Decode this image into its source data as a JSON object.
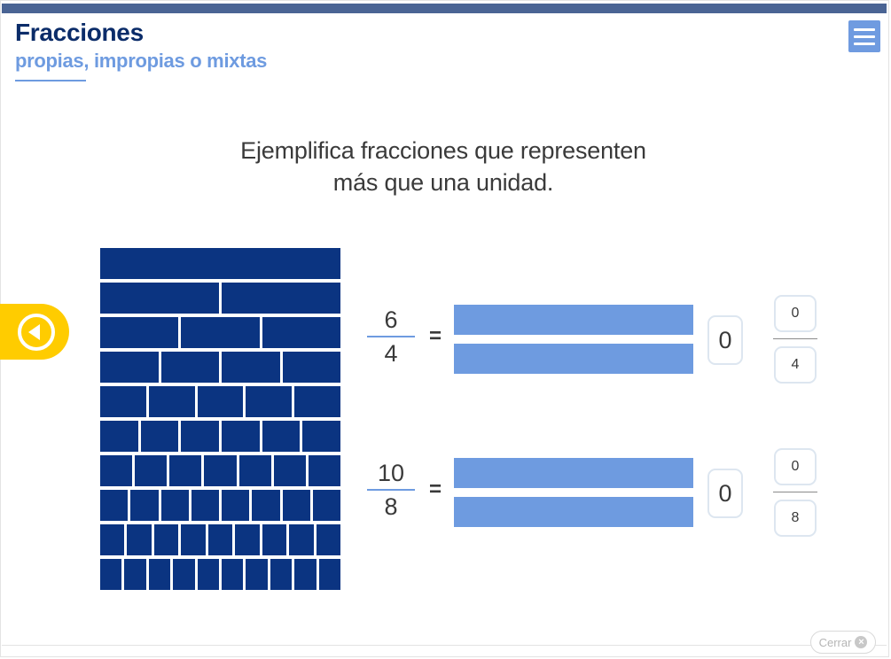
{
  "header": {
    "title": "Fracciones",
    "subtitle": "propias, impropias o mixtas"
  },
  "instruction": {
    "line1": "Ejemplifica fracciones que representen",
    "line2": "más que una unidad."
  },
  "fraction_wall": {
    "row_divisions": [
      1,
      2,
      3,
      4,
      5,
      6,
      7,
      8,
      9,
      10
    ],
    "color": "#0b3481"
  },
  "exercises": [
    {
      "numerator": "6",
      "denominator": "4",
      "equals": "=",
      "whole_value": "0",
      "mixed_numerator": "0",
      "mixed_denominator": "4"
    },
    {
      "numerator": "10",
      "denominator": "8",
      "equals": "=",
      "whole_value": "0",
      "mixed_numerator": "0",
      "mixed_denominator": "8"
    }
  ],
  "footer": {
    "close_label": "Cerrar",
    "close_icon": "×"
  },
  "colors": {
    "topbar": "#4a6494",
    "title": "#0b2c69",
    "accent": "#6e9be0",
    "back_button": "#ffcc00"
  },
  "icons": {
    "menu": "hamburger-menu-icon",
    "back": "arrow-left-circle-icon",
    "close": "close-icon"
  }
}
